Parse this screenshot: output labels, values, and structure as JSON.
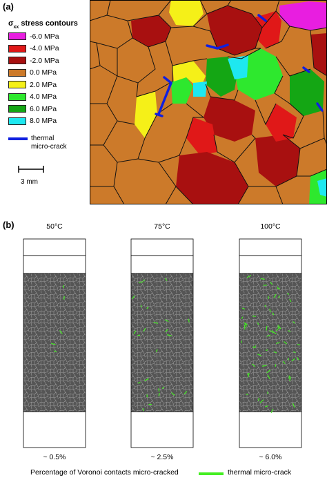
{
  "panel_a": {
    "label": "(a)",
    "legend_title_sigma": "σ",
    "legend_title_sub": "xx",
    "legend_title_rest": " stress contours",
    "contours": [
      {
        "label": "-6.0 MPa",
        "color": "#e81ee0"
      },
      {
        "label": "-4.0 MPa",
        "color": "#e01818"
      },
      {
        "label": "-2.0 MPa",
        "color": "#a81010"
      },
      {
        "label": "0.0 MPa",
        "color": "#cc7a2a"
      },
      {
        "label": "2.0 MPa",
        "color": "#f5f018"
      },
      {
        "label": "4.0 MPa",
        "color": "#2ee82e"
      },
      {
        "label": "6.0 MPa",
        "color": "#14a614"
      },
      {
        "label": "8.0 MPa",
        "color": "#1ee8f0"
      }
    ],
    "crack_label_1": "thermal",
    "crack_label_2": "micro-crack",
    "crack_color": "#1020e0",
    "scale_label": "3 mm"
  },
  "panel_b": {
    "label": "(b)",
    "columns": [
      {
        "temperature": "50°C",
        "percent": "~ 0.5%"
      },
      {
        "temperature": "75°C",
        "percent": "~ 2.5%"
      },
      {
        "temperature": "100°C",
        "percent": "~ 6.0%"
      }
    ],
    "crack_fraction": [
      0.005,
      0.025,
      0.06
    ],
    "caption": "Percentage of Voronoi contacts micro-cracked",
    "legend_label": "thermal micro-crack",
    "legend_color": "#44ee22",
    "specimen_fill": "#555555"
  }
}
